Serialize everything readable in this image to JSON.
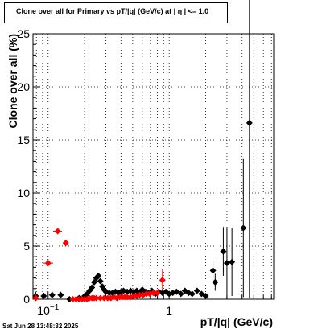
{
  "title": "Clone  over all for Primary vs pT/|q| (GeV/c) at |  η  | <= 1.0",
  "timestamp": "Sat Jun 28 13:48:32 2025",
  "colors": {
    "series_black": "#000000",
    "series_red": "#ff0000",
    "grid": "#000000"
  },
  "chart_data": {
    "type": "scatter",
    "title": "Clone  over all for Primary vs pT/|q| (GeV/c) at |  η  | <= 1.0",
    "xlabel": "pT/|q| (GeV/c)",
    "ylabel": "Clone  over all (%)",
    "xscale": "log",
    "xlim": [
      0.075,
      7.3
    ],
    "ylim": [
      0,
      25
    ],
    "yticks": [
      0,
      5,
      10,
      15,
      20,
      25
    ],
    "ytick_labels": [
      "0",
      "5",
      "10",
      "15",
      "20",
      "25"
    ],
    "xtick_labels": [
      {
        "value": 0.1,
        "label": "10",
        "sup": "−1"
      },
      {
        "value": 1,
        "label": "1",
        "sup": ""
      }
    ],
    "grid": true,
    "series": [
      {
        "color": "#000000",
        "points": [
          {
            "x": 0.079,
            "y": 0.3,
            "yerr": 0.4,
            "xerr": 0.004
          },
          {
            "x": 0.092,
            "y": 0.3,
            "yerr": 0.3,
            "xerr": 0.005
          },
          {
            "x": 0.108,
            "y": 0.4,
            "yerr": 0.3,
            "xerr": 0.006
          },
          {
            "x": 0.127,
            "y": 0.4,
            "yerr": 0.3,
            "xerr": 0.007
          },
          {
            "x": 0.15,
            "y": 0.0
          },
          {
            "x": 0.18,
            "y": 0.1
          },
          {
            "x": 0.2,
            "y": 0.3
          },
          {
            "x": 0.21,
            "y": 0.5
          },
          {
            "x": 0.22,
            "y": 0.8
          },
          {
            "x": 0.23,
            "y": 1.1
          },
          {
            "x": 0.24,
            "y": 1.6
          },
          {
            "x": 0.25,
            "y": 2.0
          },
          {
            "x": 0.26,
            "y": 2.2
          },
          {
            "x": 0.27,
            "y": 1.7
          },
          {
            "x": 0.28,
            "y": 1.2
          },
          {
            "x": 0.29,
            "y": 0.9
          },
          {
            "x": 0.3,
            "y": 0.7
          },
          {
            "x": 0.32,
            "y": 0.6
          },
          {
            "x": 0.34,
            "y": 0.6
          },
          {
            "x": 0.36,
            "y": 0.7
          },
          {
            "x": 0.38,
            "y": 0.6
          },
          {
            "x": 0.4,
            "y": 0.7
          },
          {
            "x": 0.42,
            "y": 0.8
          },
          {
            "x": 0.45,
            "y": 0.7
          },
          {
            "x": 0.48,
            "y": 0.8
          },
          {
            "x": 0.51,
            "y": 0.7
          },
          {
            "x": 0.54,
            "y": 0.8
          },
          {
            "x": 0.57,
            "y": 0.6
          },
          {
            "x": 0.6,
            "y": 0.9
          },
          {
            "x": 0.64,
            "y": 0.7
          },
          {
            "x": 0.68,
            "y": 0.6
          },
          {
            "x": 0.72,
            "y": 0.8
          },
          {
            "x": 0.77,
            "y": 0.5
          },
          {
            "x": 0.82,
            "y": 0.7
          },
          {
            "x": 0.88,
            "y": 0.6
          },
          {
            "x": 0.94,
            "y": 0.7
          },
          {
            "x": 1.0,
            "y": 0.5
          },
          {
            "x": 1.07,
            "y": 0.6
          },
          {
            "x": 1.15,
            "y": 0.7
          },
          {
            "x": 1.25,
            "y": 0.5
          },
          {
            "x": 1.35,
            "y": 0.8
          },
          {
            "x": 1.45,
            "y": 0.6
          },
          {
            "x": 1.55,
            "y": 0.5
          },
          {
            "x": 1.7,
            "y": 0.8
          },
          {
            "x": 1.85,
            "y": 0.5
          },
          {
            "x": 2.0,
            "y": 0.3
          },
          {
            "x": 2.3,
            "y": 2.7,
            "yerr": 0.9
          },
          {
            "x": 2.4,
            "y": 1.6,
            "yerr": 0.8
          },
          {
            "x": 2.8,
            "y": 4.5,
            "yerr": 2.3
          },
          {
            "x": 3.0,
            "y": 3.4,
            "yerr": 3.4
          },
          {
            "x": 3.3,
            "y": 3.5,
            "yerr": 3.2
          },
          {
            "x": 4.1,
            "y": 6.7,
            "yerr": 6.5
          },
          {
            "x": 4.6,
            "y": 16.6,
            "yerr": 16.5
          }
        ]
      },
      {
        "color": "#ff0000",
        "points": [
          {
            "x": 0.079,
            "y": 0.1,
            "yerr": 0.4,
            "xerr": 0.004
          },
          {
            "x": 0.1,
            "y": 3.4,
            "yerr": 0.3,
            "xerr": 0.01
          },
          {
            "x": 0.12,
            "y": 6.4,
            "yerr": 0.3,
            "xerr": 0.01
          },
          {
            "x": 0.14,
            "y": 5.3,
            "yerr": 0.3,
            "xerr": 0.008
          },
          {
            "x": 0.16,
            "y": 0.0
          },
          {
            "x": 0.17,
            "y": 0.0
          },
          {
            "x": 0.18,
            "y": 0.0
          },
          {
            "x": 0.19,
            "y": 0.0
          },
          {
            "x": 0.2,
            "y": 0.0
          },
          {
            "x": 0.21,
            "y": 0.0
          },
          {
            "x": 0.22,
            "y": 0.1
          },
          {
            "x": 0.23,
            "y": 0.1
          },
          {
            "x": 0.24,
            "y": 0.1
          },
          {
            "x": 0.25,
            "y": 0.1
          },
          {
            "x": 0.27,
            "y": 0.1
          },
          {
            "x": 0.29,
            "y": 0.1
          },
          {
            "x": 0.31,
            "y": 0.1
          },
          {
            "x": 0.33,
            "y": 0.1
          },
          {
            "x": 0.35,
            "y": 0.2
          },
          {
            "x": 0.37,
            "y": 0.1
          },
          {
            "x": 0.39,
            "y": 0.2
          },
          {
            "x": 0.41,
            "y": 0.2
          },
          {
            "x": 0.43,
            "y": 0.2
          },
          {
            "x": 0.45,
            "y": 0.2
          },
          {
            "x": 0.48,
            "y": 0.2
          },
          {
            "x": 0.51,
            "y": 0.3
          },
          {
            "x": 0.54,
            "y": 0.3
          },
          {
            "x": 0.57,
            "y": 0.4
          },
          {
            "x": 0.61,
            "y": 0.4
          },
          {
            "x": 0.65,
            "y": 0.5
          },
          {
            "x": 0.69,
            "y": 0.5
          },
          {
            "x": 0.74,
            "y": 0.6
          },
          {
            "x": 0.8,
            "y": 0.6
          },
          {
            "x": 0.88,
            "y": 1.8,
            "yerr": 1.0
          }
        ]
      }
    ]
  }
}
